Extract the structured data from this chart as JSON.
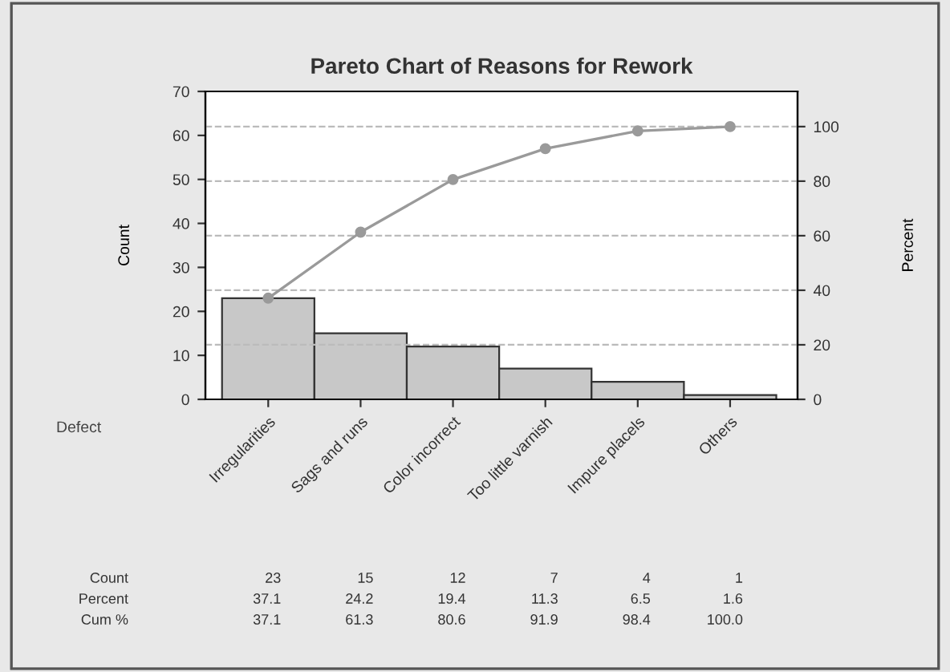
{
  "chart_data": {
    "type": "bar",
    "title": "Pareto Chart of Reasons for Rework",
    "xlabel": "Defect",
    "ylabel": "Count",
    "y2label": "Percent",
    "categories": [
      "Irregularities",
      "Sags and runs",
      "Color incorrect",
      "Too little varnish",
      "Impure placels",
      "Others"
    ],
    "series": [
      {
        "color": "#c8c8c8",
        "values": [
          23,
          15,
          12,
          7,
          4,
          1
        ],
        "value_labels": [
          "23",
          "15",
          "12",
          "7",
          "4",
          "1"
        ]
      },
      {
        "type": "line",
        "axis": "y2",
        "color": "#9a9a9a",
        "values": [
          37.1,
          61.3,
          80.6,
          91.9,
          98.4,
          100.0
        ],
        "value_labels": [
          "37.1",
          "61.3",
          "80.6",
          "91.9",
          "98.4",
          "100.0"
        ],
        "marker": "circle",
        "line_style": "solid"
      }
    ],
    "annotations": [
      "Count",
      "Percent",
      "Cum %",
      "37.1",
      "24.2",
      "19.4",
      "11.3",
      "6.5",
      "1.6"
    ],
    "ylim": [
      0,
      70
    ],
    "yticks": [
      0,
      10,
      20,
      30,
      40,
      50,
      60,
      70
    ],
    "y2lim": [
      0,
      112.9
    ],
    "y2ticks": [
      0,
      20,
      40,
      60,
      80,
      100
    ],
    "grid": "y",
    "legend": false
  }
}
